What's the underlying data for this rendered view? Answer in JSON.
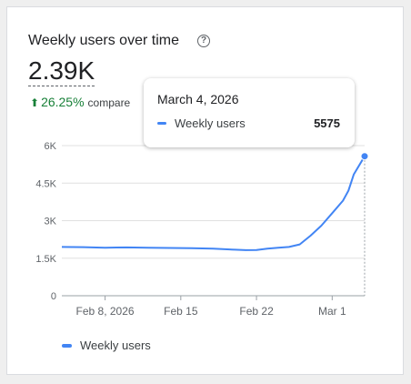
{
  "card": {
    "title": "Weekly users over time",
    "help_icon": "help-circle-icon",
    "value": "2.39K",
    "delta_arrow": "arrow-up-icon",
    "delta": "26.25%",
    "delta_suffix": "compare"
  },
  "tooltip": {
    "date": "March 4, 2026",
    "series_name": "Weekly users",
    "value": "5575"
  },
  "legend": {
    "label": "Weekly users"
  },
  "colors": {
    "series": "#4285f4",
    "positive": "#188038"
  },
  "chart_data": {
    "type": "line",
    "x_start": "2026-02-04",
    "x_tick_labels": [
      "Feb 8, 2026",
      "Feb 15",
      "Feb 22",
      "Mar 1"
    ],
    "x_tick_dates": [
      "2026-02-08",
      "2026-02-15",
      "2026-02-22",
      "2026-03-01"
    ],
    "y_tick_labels": [
      "0",
      "1.5K",
      "3K",
      "4.5K",
      "6K"
    ],
    "y_ticks": [
      0,
      1500,
      3000,
      4500,
      6000
    ],
    "ylim": [
      0,
      6000
    ],
    "grid": "horizontal",
    "legend_position": "bottom-left",
    "series": [
      {
        "name": "Weekly users",
        "points": [
          [
            "2026-02-04",
            1950
          ],
          [
            "2026-02-06",
            1940
          ],
          [
            "2026-02-08",
            1920
          ],
          [
            "2026-02-10",
            1930
          ],
          [
            "2026-02-12",
            1920
          ],
          [
            "2026-02-14",
            1910
          ],
          [
            "2026-02-16",
            1900
          ],
          [
            "2026-02-18",
            1880
          ],
          [
            "2026-02-20",
            1840
          ],
          [
            "2026-02-21",
            1820
          ],
          [
            "2026-02-22",
            1830
          ],
          [
            "2026-02-23",
            1880
          ],
          [
            "2026-02-24",
            1920
          ],
          [
            "2026-02-25",
            1950
          ],
          [
            "2026-02-26",
            2050
          ],
          [
            "2026-02-27",
            2400
          ],
          [
            "2026-02-28",
            2800
          ],
          [
            "2026-03-01",
            3300
          ],
          [
            "2026-03-02",
            3800
          ],
          [
            "2026-03-02T12",
            4200
          ],
          [
            "2026-03-03",
            4850
          ],
          [
            "2026-03-04",
            5575
          ]
        ]
      }
    ]
  }
}
